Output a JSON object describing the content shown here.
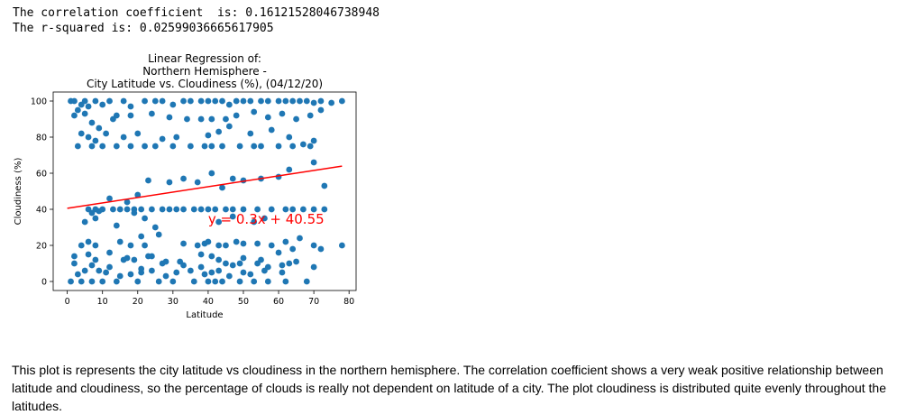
{
  "output": {
    "line1": "The correlation coefficient  is: 0.16121528046738948",
    "line2": "The r-squared is: 0.02599036665617905"
  },
  "description": "This plot is represents the city latitude vs cloudiness in the northern hemisphere. The correlation coefficient shows a very weak positive relationship between latitude and cloudiness, so the percentage of clouds is really not dependent on latitude of a city. The plot cloudiness is distributed quite evenly throughout the latitudes.",
  "chart_data": {
    "type": "scatter",
    "title_lines": [
      "Linear Regression of:",
      "Northern Hemisphere -",
      "City Latitude vs. Cloudiness (%), (04/12/20)"
    ],
    "xlabel": "Latitude",
    "ylabel": "Cloudiness (%)",
    "xlim": [
      -4,
      82
    ],
    "ylim": [
      -5,
      105
    ],
    "xticks": [
      0,
      10,
      20,
      30,
      40,
      50,
      60,
      70,
      80
    ],
    "yticks": [
      0,
      20,
      40,
      60,
      80,
      100
    ],
    "grid": false,
    "point_color": "#1f77b4",
    "line_color": "#ff0000",
    "regression": {
      "slope": 0.3,
      "intercept": 40.55,
      "x_range": [
        0,
        78
      ],
      "equation": "y = 0.3x + 40.55",
      "label_x": 40,
      "label_y": 32
    },
    "series": [
      {
        "x": [
          1,
          2,
          4,
          5,
          6,
          3,
          8,
          10,
          12,
          14,
          16,
          18,
          22,
          25,
          27,
          30,
          33,
          35,
          38,
          40,
          42,
          44,
          46,
          48,
          50,
          52,
          55,
          57,
          60,
          62,
          64,
          66,
          68,
          70,
          72,
          75,
          78,
          2,
          5,
          7,
          9,
          13,
          18,
          24,
          29,
          34,
          38,
          41,
          45,
          48,
          53,
          57,
          61,
          65,
          69,
          72,
          4,
          6,
          8,
          11,
          16,
          20,
          27,
          31,
          40,
          43,
          46,
          52,
          58,
          63,
          67,
          70,
          3,
          7,
          10,
          14,
          18,
          22,
          25,
          30,
          35,
          39,
          41,
          44,
          49,
          53,
          55,
          60,
          64,
          69,
          6,
          8,
          10,
          13,
          15,
          17,
          19,
          21,
          24,
          27,
          29,
          31,
          33,
          36,
          38,
          40,
          42,
          45,
          47,
          50,
          54,
          58,
          62,
          64,
          67,
          70,
          73,
          7,
          9,
          12,
          17,
          20,
          23,
          29,
          33,
          37,
          41,
          44,
          47,
          50,
          55,
          60,
          63,
          70,
          73,
          5,
          8,
          14,
          19,
          22,
          25,
          43,
          47,
          53,
          56,
          4,
          6,
          8,
          15,
          18,
          21,
          22,
          26,
          33,
          37,
          39,
          40,
          43,
          45,
          48,
          50,
          54,
          58,
          62,
          64,
          66,
          70,
          72,
          78,
          2,
          6,
          8,
          12,
          16,
          19,
          23,
          27,
          32,
          38,
          41,
          45,
          49,
          55,
          60,
          63,
          3,
          5,
          9,
          11,
          15,
          18,
          21,
          24,
          28,
          31,
          35,
          39,
          41,
          43,
          46,
          50,
          52,
          56,
          61,
          1,
          4,
          7,
          10,
          14,
          20,
          26,
          30,
          36,
          40,
          42,
          44,
          49,
          53,
          57,
          62,
          68,
          2,
          7,
          12,
          17,
          21,
          24,
          28,
          33,
          38,
          43,
          47,
          50,
          54,
          57,
          61,
          65,
          70
        ],
        "y": [
          100,
          100,
          98,
          100,
          97,
          95,
          100,
          98,
          100,
          92,
          100,
          97,
          100,
          100,
          100,
          98,
          100,
          100,
          100,
          100,
          100,
          100,
          98,
          100,
          100,
          100,
          100,
          100,
          100,
          100,
          100,
          100,
          100,
          99,
          100,
          99,
          100,
          92,
          93,
          88,
          85,
          90,
          92,
          93,
          91,
          90,
          90,
          90,
          90,
          92,
          94,
          91,
          93,
          90,
          92,
          95,
          82,
          80,
          78,
          82,
          80,
          82,
          79,
          80,
          81,
          83,
          86,
          82,
          84,
          80,
          76,
          78,
          75,
          75,
          75,
          75,
          75,
          75,
          75,
          75,
          75,
          75,
          75,
          75,
          75,
          75,
          75,
          75,
          75,
          75,
          40,
          40,
          40,
          40,
          40,
          40,
          40,
          40,
          40,
          40,
          40,
          40,
          40,
          40,
          40,
          40,
          40,
          40,
          40,
          40,
          40,
          40,
          40,
          40,
          40,
          40,
          40,
          38,
          39,
          46,
          44,
          48,
          56,
          55,
          57,
          55,
          60,
          52,
          57,
          56,
          57,
          58,
          62,
          66,
          53,
          33,
          35,
          31,
          38,
          35,
          30,
          33,
          36,
          33,
          35,
          20,
          22,
          20,
          22,
          20,
          25,
          20,
          26,
          21,
          20,
          21,
          22,
          20,
          20,
          22,
          21,
          21,
          20,
          22,
          18,
          24,
          20,
          18,
          20,
          14,
          15,
          12,
          16,
          12,
          12,
          14,
          10,
          11,
          15,
          14,
          10,
          10,
          12,
          16,
          10,
          4,
          6,
          6,
          5,
          3,
          4,
          5,
          6,
          3,
          5,
          6,
          4,
          5,
          6,
          3,
          5,
          4,
          6,
          5,
          0,
          0,
          0,
          0,
          0,
          0,
          0,
          0,
          0,
          0,
          0,
          0,
          0,
          0,
          0,
          0,
          0,
          10,
          9,
          8,
          13,
          7,
          14,
          11,
          9,
          8,
          12,
          9,
          13,
          10,
          8,
          9,
          11,
          8
        ]
      }
    ]
  }
}
